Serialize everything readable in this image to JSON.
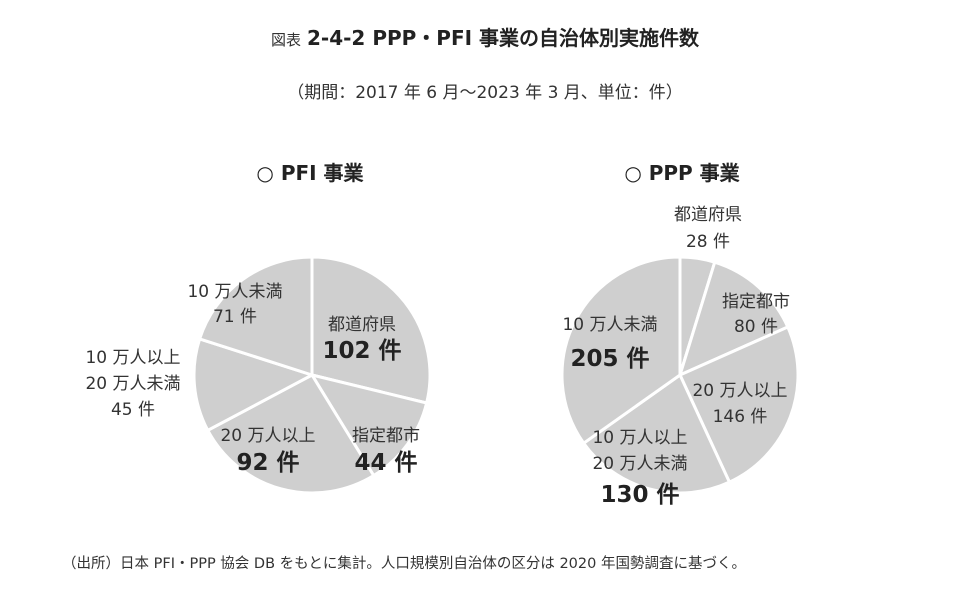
{
  "figure": {
    "title_prefix": "図表",
    "title": "2-4-2 PPP・PFI 事業の自治体別実施件数",
    "subtitle": "（期間：2017 年 6 月～2023 年 3 月、単位：件）",
    "source": "（出所）日本 PFI・PPP 協会 DB をもとに集計。人口規模別自治体の区分は 2020 年国勢調査に基づく。"
  },
  "colors": {
    "slice": "#cfcfcf",
    "border": "#ffffff",
    "text": "#333333"
  },
  "chart_data": [
    {
      "type": "pie",
      "title": "○ PFI 事業",
      "slices": [
        {
          "name": "都道府県",
          "value": 102,
          "label_lines": [
            "都道府県"
          ],
          "value_label": "102 件",
          "emphasis": true
        },
        {
          "name": "指定都市",
          "value": 44,
          "label_lines": [
            "指定都市"
          ],
          "value_label": "44 件",
          "emphasis": true
        },
        {
          "name": "20 万人以上",
          "value": 92,
          "label_lines": [
            "20 万人以上"
          ],
          "value_label": "92 件",
          "emphasis": true
        },
        {
          "name": "10 万人以上 20 万人未満",
          "value": 45,
          "label_lines": [
            "10 万人以上",
            "20 万人未満"
          ],
          "value_label": "45 件",
          "emphasis": false
        },
        {
          "name": "10 万人未満",
          "value": 71,
          "label_lines": [
            "10 万人未満"
          ],
          "value_label": "71 件",
          "emphasis": false
        }
      ]
    },
    {
      "type": "pie",
      "title": "○ PPP 事業",
      "slices": [
        {
          "name": "都道府県",
          "value": 28,
          "label_lines": [
            "都道府県"
          ],
          "value_label": "28 件",
          "emphasis": false
        },
        {
          "name": "指定都市",
          "value": 80,
          "label_lines": [
            "指定都市"
          ],
          "value_label": "80 件",
          "emphasis": false
        },
        {
          "name": "20 万人以上",
          "value": 146,
          "label_lines": [
            "20 万人以上"
          ],
          "value_label": "146 件",
          "emphasis": false
        },
        {
          "name": "10 万人以上 20 万人未満",
          "value": 130,
          "label_lines": [
            "10 万人以上",
            "20 万人未満"
          ],
          "value_label": "130 件",
          "emphasis": true
        },
        {
          "name": "10 万人未満",
          "value": 205,
          "label_lines": [
            "10 万人未満"
          ],
          "value_label": "205 件",
          "emphasis": true
        }
      ]
    }
  ]
}
